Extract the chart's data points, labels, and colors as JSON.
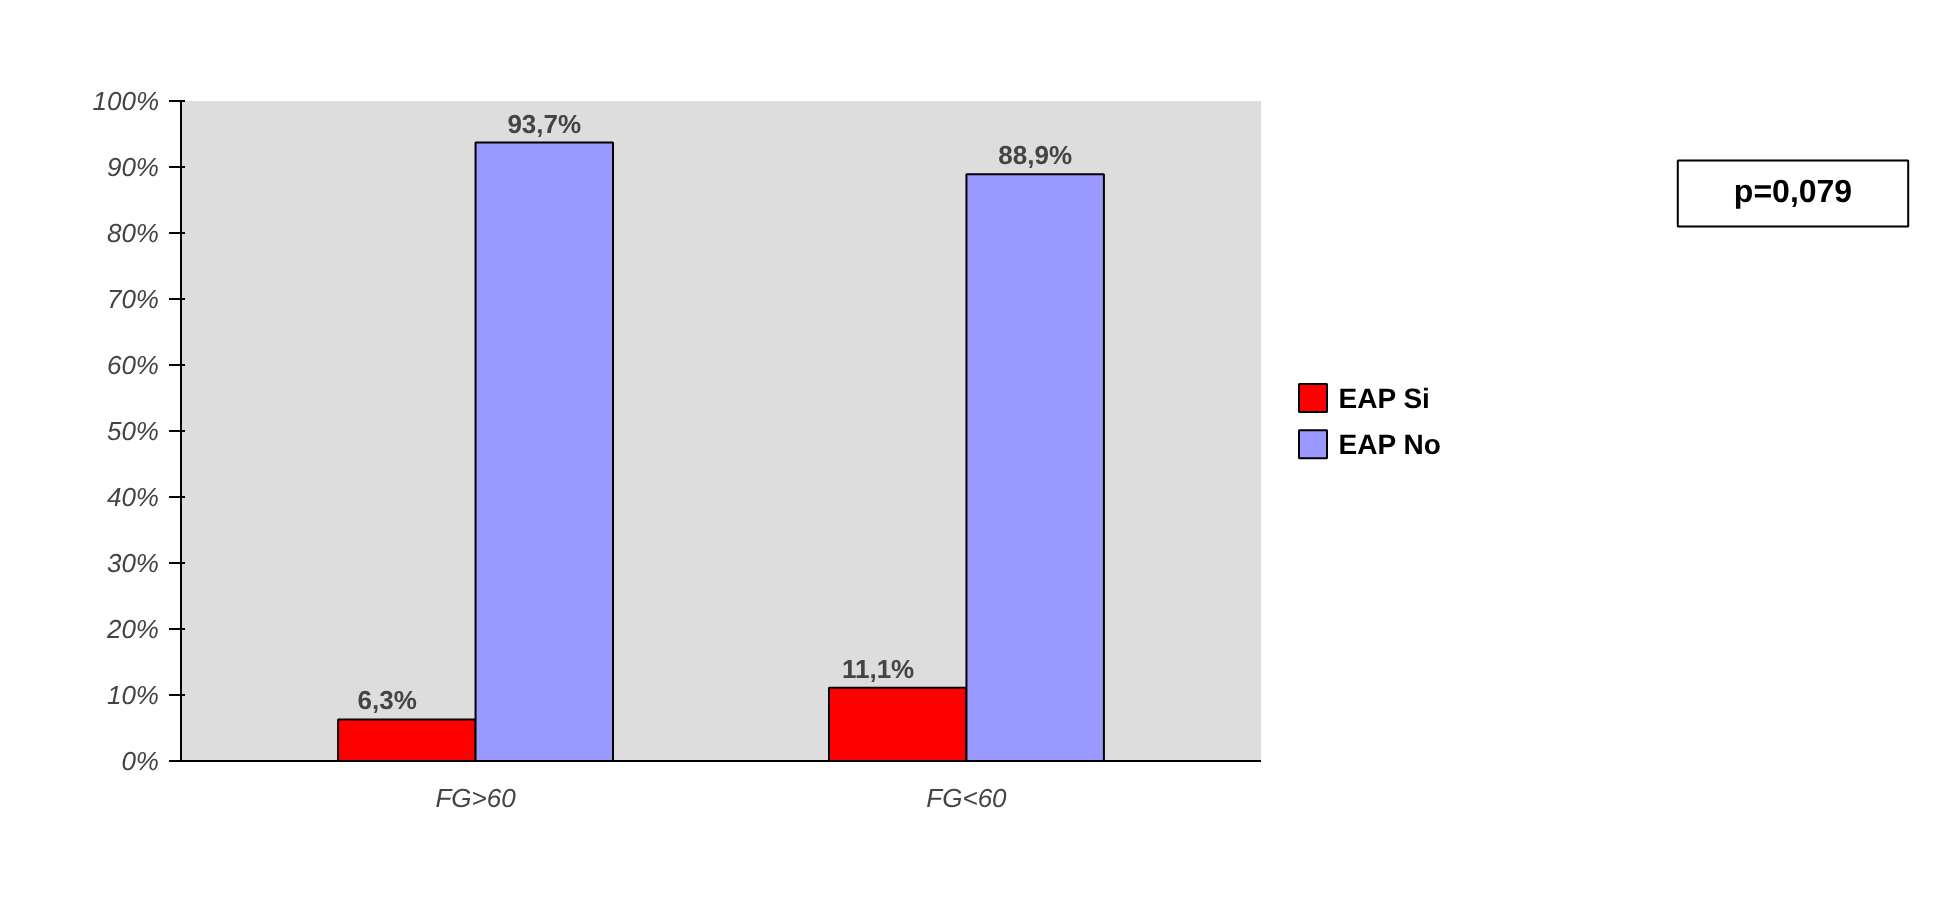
{
  "chart_data": {
    "type": "bar",
    "categories": [
      "FG>60",
      "FG<60"
    ],
    "series": [
      {
        "name": "EAP Si",
        "color": "#ff0000",
        "values": [
          6.3,
          11.1
        ],
        "value_labels": [
          "6,3%",
          "11,1%"
        ]
      },
      {
        "name": "EAP No",
        "color": "#9999ff",
        "values": [
          93.7,
          88.9
        ],
        "value_labels": [
          "93,7%",
          "88,9%"
        ]
      }
    ],
    "ylim": [
      0,
      100
    ],
    "yticks": [
      {
        "value": 0,
        "label": "0%"
      },
      {
        "value": 10,
        "label": "10%"
      },
      {
        "value": 20,
        "label": "20%"
      },
      {
        "value": 30,
        "label": "30%"
      },
      {
        "value": 40,
        "label": "40%"
      },
      {
        "value": 50,
        "label": "50%"
      },
      {
        "value": 60,
        "label": "60%"
      },
      {
        "value": 70,
        "label": "70%"
      },
      {
        "value": 80,
        "label": "80%"
      },
      {
        "value": 90,
        "label": "90%"
      },
      {
        "value": 100,
        "label": "100%"
      }
    ],
    "legend": "right",
    "annotations": [
      "p=0,079"
    ]
  }
}
